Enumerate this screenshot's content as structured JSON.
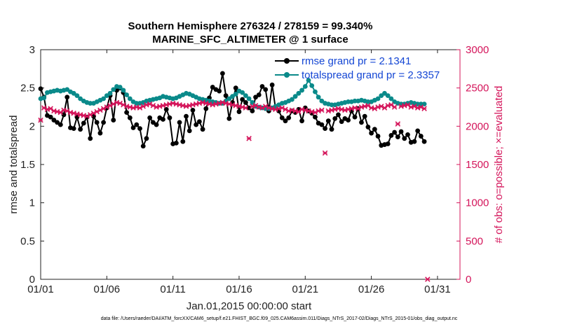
{
  "chart_data": {
    "type": "line",
    "title": "Southern Hemisphere 276324 / 278159 = 99.340%",
    "subtitle": "MARINE_SFC_ALTIMETER @ 1 surface",
    "xlabel": "Jan.01,2015 00:00:00 start",
    "ylabel": "rmse and totalspread",
    "ylabel_right": "# of obs: o=possible; ×=evaluated",
    "footer": "data file: /Users/raeder/DAI/ATM_forcXX/CAM6_setup/f.e21.FHIST_BGC.f09_025.CAM6assim.011/Diags_NTrS_2017-02/Diags_NTrS_2015-01/obs_diag_output.nc",
    "xlim": [
      0,
      31.7
    ],
    "ylim": [
      0,
      3
    ],
    "ylim_right": [
      0,
      3000
    ],
    "x_ticks": [
      0,
      5,
      10,
      15,
      20,
      25,
      30
    ],
    "x_tick_labels": [
      "01/01",
      "01/06",
      "01/11",
      "01/16",
      "01/21",
      "01/26",
      "01/31"
    ],
    "y_ticks": [
      0,
      0.5,
      1,
      1.5,
      2,
      2.5,
      3
    ],
    "y_tick_labels": [
      "0",
      "0.5",
      "1",
      "1.5",
      "2",
      "2.5",
      "3"
    ],
    "y_right_ticks": [
      0,
      500,
      1000,
      1500,
      2000,
      2500,
      3000
    ],
    "y_right_tick_labels": [
      "0",
      "500",
      "1000",
      "1500",
      "2000",
      "2500",
      "3000"
    ],
    "grid": false,
    "legend_placement": "top-right",
    "colors": {
      "rmse": "#000000",
      "totalspread": "#0a8a8a",
      "obs": "#d4145a",
      "legend_text": "#1446d4"
    },
    "series": [
      {
        "name": "rmse grand pr = 2.1341",
        "color": "#000000",
        "x_start": 0,
        "x_step": 0.25,
        "values": [
          2.49,
          2.38,
          2.14,
          2.12,
          2.08,
          2.05,
          2.02,
          2.15,
          2.38,
          1.98,
          1.97,
          2.12,
          1.96,
          2.04,
          2.12,
          1.84,
          2.13,
          2.05,
          1.91,
          2.05,
          2.24,
          2.4,
          2.08,
          2.47,
          2.5,
          2.44,
          2.18,
          2.11,
          1.98,
          2.02,
          1.97,
          1.74,
          1.84,
          2.11,
          2.05,
          2.02,
          2.11,
          2.09,
          2.22,
          2.11,
          1.77,
          1.78,
          2.05,
          1.8,
          2.13,
          1.94,
          2.21,
          2.02,
          2.06,
          1.96,
          2.23,
          2.37,
          2.51,
          2.48,
          2.46,
          2.69,
          2.4,
          2.1,
          2.31,
          2.5,
          2.19,
          2.35,
          2.31,
          2.24,
          2.2,
          2.38,
          2.41,
          2.52,
          2.48,
          2.2,
          2.54,
          2.24,
          2.2,
          2.11,
          2.07,
          2.11,
          2.2,
          2.18,
          2.22,
          2.07,
          2.24,
          2.2,
          2.17,
          2.12,
          2.04,
          2.02,
          1.97,
          2.07,
          1.96,
          2.1,
          2.15,
          2.06,
          2.1,
          2.08,
          2.2,
          2.12,
          2.23,
          2.05,
          2.13,
          1.99,
          1.91,
          1.96,
          1.87,
          1.75,
          1.76,
          1.77,
          1.88,
          1.92,
          1.86,
          1.93,
          1.84,
          1.89,
          1.79,
          1.8,
          1.94,
          1.87,
          1.8
        ]
      },
      {
        "name": "totalspread grand pr = 2.3357",
        "color": "#0a8a8a",
        "x_start": 0,
        "x_step": 0.25,
        "values": [
          2.36,
          2.37,
          2.44,
          2.45,
          2.46,
          2.47,
          2.46,
          2.47,
          2.48,
          2.45,
          2.43,
          2.4,
          2.36,
          2.33,
          2.31,
          2.3,
          2.3,
          2.32,
          2.34,
          2.36,
          2.4,
          2.43,
          2.48,
          2.52,
          2.51,
          2.47,
          2.41,
          2.36,
          2.32,
          2.3,
          2.3,
          2.31,
          2.33,
          2.34,
          2.35,
          2.36,
          2.37,
          2.39,
          2.38,
          2.37,
          2.36,
          2.37,
          2.39,
          2.41,
          2.43,
          2.42,
          2.4,
          2.38,
          2.36,
          2.35,
          2.34,
          2.33,
          2.32,
          2.31,
          2.3,
          2.3,
          2.33,
          2.36,
          2.39,
          2.42,
          2.46,
          2.44,
          2.4,
          2.36,
          2.31,
          2.26,
          2.25,
          2.24,
          2.23,
          2.23,
          2.24,
          2.26,
          2.28,
          2.3,
          2.31,
          2.33,
          2.35,
          2.39,
          2.43,
          2.47,
          2.52,
          2.6,
          2.53,
          2.45,
          2.38,
          2.33,
          2.3,
          2.29,
          2.28,
          2.28,
          2.29,
          2.3,
          2.31,
          2.32,
          2.32,
          2.33,
          2.33,
          2.34,
          2.33,
          2.32,
          2.32,
          2.34,
          2.36,
          2.4,
          2.43,
          2.4,
          2.36,
          2.32,
          2.3,
          2.29,
          2.29,
          2.3,
          2.31,
          2.3,
          2.29,
          2.29,
          2.29
        ]
      },
      {
        "name": "evaluated",
        "color": "#d4145a",
        "axis": "right",
        "marker": "x",
        "x_start": 0,
        "x_step": 0.25,
        "values": [
          2080,
          2240,
          2220,
          2230,
          2200,
          2190,
          2180,
          2210,
          2200,
          2180,
          2170,
          2160,
          2150,
          2140,
          2130,
          2150,
          2170,
          2190,
          2210,
          2230,
          2250,
          2270,
          2290,
          2310,
          2300,
          2280,
          2260,
          2250,
          2240,
          2250,
          2240,
          2260,
          2280,
          2290,
          2270,
          2250,
          2260,
          2270,
          2280,
          2290,
          2300,
          2290,
          2280,
          2270,
          2260,
          2270,
          2280,
          2290,
          2300,
          2310,
          2300,
          2290,
          2280,
          2290,
          2300,
          2310,
          2300,
          2290,
          2280,
          2270,
          2260,
          2250,
          2240,
          1840,
          2260,
          2270,
          2250,
          2240,
          2260,
          2240,
          2230,
          2220,
          2230,
          2240,
          2220,
          2200,
          2210,
          2200,
          2190,
          2220,
          2210,
          2200,
          2190,
          2180,
          2200,
          2210,
          1650,
          2200,
          2210,
          2220,
          2230,
          2220,
          2210,
          2220,
          2230,
          2240,
          2230,
          2250,
          2260,
          2270,
          2240,
          2230,
          2250,
          2260,
          2240,
          2270,
          2280,
          2250,
          2030,
          2260,
          2270,
          2280,
          2250,
          2260,
          2240,
          2250,
          2230,
          0
        ]
      }
    ]
  }
}
